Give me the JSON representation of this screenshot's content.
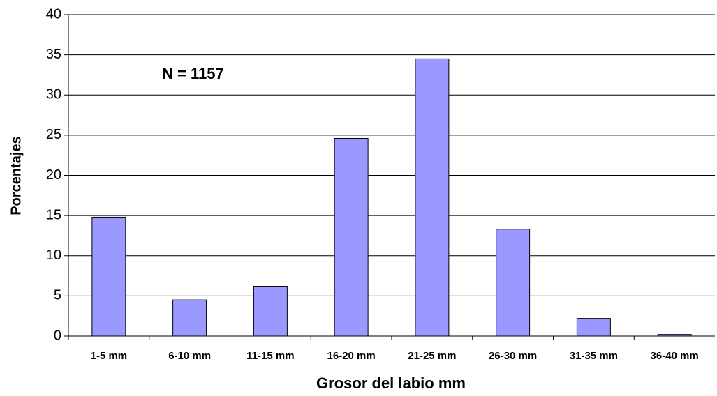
{
  "chart_data": {
    "type": "bar",
    "annotation": "N = 1157",
    "x_label": "Grosor del labio  mm",
    "y_label": "Porcentajes",
    "categories": [
      "1-5 mm",
      "6-10 mm",
      "11-15 mm",
      "16-20 mm",
      "21-25 mm",
      "26-30 mm",
      "31-35 mm",
      "36-40 mm"
    ],
    "values": [
      14.8,
      4.5,
      6.2,
      24.6,
      34.5,
      13.3,
      2.2,
      0.2
    ],
    "color": "#9999ff",
    "ylim": [
      0,
      40
    ],
    "yticks": [
      0,
      5,
      10,
      15,
      20,
      25,
      30,
      35,
      40
    ],
    "grid": true
  }
}
